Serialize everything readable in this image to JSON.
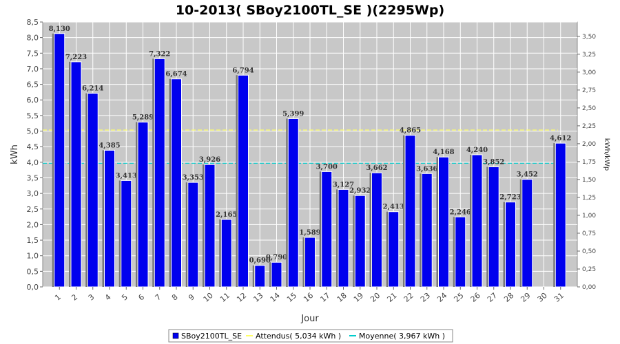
{
  "chart_data": {
    "type": "bar",
    "title": "10-2013( SBoy2100TL_SE )(2295Wp)",
    "xlabel": "Jour",
    "ylabel": "kWh",
    "y2label": "kWh/kWp",
    "ylim": [
      0,
      8.5
    ],
    "y2lim": [
      0,
      3.7
    ],
    "y_ticks": [
      "0,0",
      "0,5",
      "1,0",
      "1,5",
      "2,0",
      "2,5",
      "3,0",
      "3,5",
      "4,0",
      "4,5",
      "5,0",
      "5,5",
      "6,0",
      "6,5",
      "7,0",
      "7,5",
      "8,0",
      "8,5"
    ],
    "y2_ticks": [
      "0,00",
      "0,25",
      "0,50",
      "0,75",
      "1,00",
      "1,25",
      "1,50",
      "1,75",
      "2,00",
      "2,25",
      "2,50",
      "2,75",
      "3,00",
      "3,25",
      "3,50"
    ],
    "categories": [
      "1",
      "2",
      "3",
      "4",
      "5",
      "6",
      "7",
      "8",
      "9",
      "10",
      "11",
      "12",
      "13",
      "14",
      "15",
      "16",
      "17",
      "18",
      "19",
      "20",
      "21",
      "22",
      "23",
      "24",
      "25",
      "26",
      "27",
      "28",
      "29",
      "30",
      "31"
    ],
    "series": [
      {
        "name": "SBoy2100TL_SE",
        "color": "#0000ee",
        "values": [
          8.13,
          7.223,
          6.214,
          4.385,
          3.413,
          5.289,
          7.322,
          6.674,
          3.353,
          3.926,
          2.165,
          6.794,
          0.69,
          0.79,
          5.399,
          1.589,
          3.7,
          3.127,
          2.932,
          3.662,
          2.413,
          4.865,
          3.636,
          4.168,
          2.246,
          4.24,
          3.852,
          2.723,
          3.452,
          null,
          4.612
        ],
        "labels": [
          "8,130",
          "7,223",
          "6,214",
          "4,385",
          "3,413",
          "5,289",
          "7,322",
          "6,674",
          "3,353",
          "3,926",
          "2,165",
          "6,794",
          "0,690",
          "0,790",
          "5,399",
          "1,589",
          "3,700",
          "3,127",
          "2,932",
          "3,662",
          "2,413",
          "4,865",
          "3,636",
          "4,168",
          "2,246",
          "4,240",
          "3,852",
          "2,723",
          "3,452",
          "",
          "4,612"
        ]
      }
    ],
    "reference_lines": [
      {
        "name": "Attendus",
        "value": 5.034,
        "legend": "Attendus( 5,034 kWh )",
        "color": "#ffff66"
      },
      {
        "name": "Moyenne",
        "value": 3.967,
        "legend": "Moyenne( 3,967 kWh )",
        "color": "#00cccc"
      }
    ],
    "legend": {
      "placement": "bottom-center",
      "items": [
        "SBoy2100TL_SE",
        "Attendus( 5,034 kWh )",
        "Moyenne( 3,967 kWh )"
      ]
    },
    "grid": true,
    "plot_background": "#c8c8c8"
  }
}
